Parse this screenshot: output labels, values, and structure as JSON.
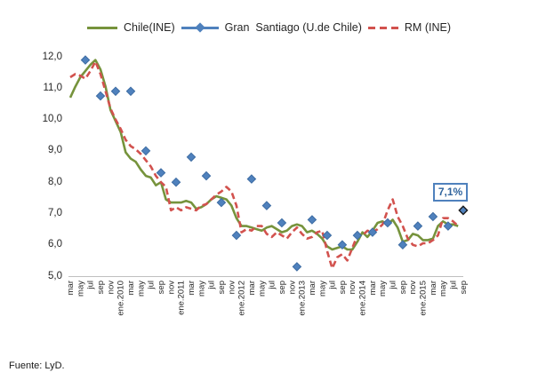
{
  "legend": {
    "items": [
      {
        "label": "Chile(INE)",
        "color": "#76933c",
        "style": "solid-line"
      },
      {
        "label": "Gran  Santiago (U.de Chile)",
        "color": "#4f81bd",
        "style": "line-with-diamond-marker"
      },
      {
        "label": "RM (INE)",
        "color": "#d2524e",
        "style": "dashed-line"
      }
    ]
  },
  "annotation": {
    "label": "7,1%",
    "value": 7.1,
    "applies_to": "Gran Santiago (U.de Chile) sep.2015"
  },
  "source": "Fuente: LyD.",
  "chart_data": {
    "type": "line",
    "title": "",
    "xlabel": "",
    "ylabel": "",
    "ylim": [
      5,
      12
    ],
    "grid": false,
    "legend_position": "top-center",
    "x_start_month": "mar.2009",
    "x_end_month": "sep.2015",
    "x_labels": [
      "mar",
      "may",
      "jul",
      "sep",
      "nov",
      "ene.2010",
      "mar",
      "may",
      "jul",
      "sep",
      "nov",
      "ene.2011",
      "mar",
      "may",
      "jul",
      "sep",
      "nov",
      "ene.2012",
      "mar",
      "may",
      "jul",
      "sep",
      "nov",
      "ene.2013",
      "mar",
      "may",
      "jul",
      "sep",
      "nov",
      "ene.2014",
      "mar",
      "may",
      "jul",
      "sep",
      "nov",
      "ene.2015",
      "mar",
      "may",
      "jul",
      "sep"
    ],
    "y_tick_labels": [
      "12,0",
      "11,0",
      "10,0",
      "9,0",
      "8,0",
      "7,0",
      "6,0",
      "5,0"
    ],
    "y_tick_values": [
      12,
      11,
      10,
      9,
      8,
      7,
      6,
      5
    ],
    "series": [
      {
        "name": "Chile(INE)",
        "color": "#76933c",
        "dash": false,
        "marker": "none",
        "frequency": "monthly",
        "first_month_index": 0,
        "values": [
          10.7,
          11.05,
          11.35,
          11.55,
          11.75,
          11.9,
          11.6,
          11.05,
          10.3,
          9.95,
          9.6,
          8.95,
          8.75,
          8.65,
          8.4,
          8.2,
          8.15,
          7.9,
          8.0,
          7.45,
          7.35,
          7.35,
          7.35,
          7.4,
          7.35,
          7.15,
          7.2,
          7.3,
          7.45,
          7.55,
          7.5,
          7.45,
          7.25,
          6.85,
          6.6,
          6.6,
          6.55,
          6.5,
          6.45,
          6.55,
          6.6,
          6.5,
          6.4,
          6.45,
          6.6,
          6.65,
          6.6,
          6.4,
          6.45,
          6.35,
          6.2,
          5.95,
          5.85,
          5.9,
          5.95,
          5.85,
          5.85,
          6.1,
          6.4,
          6.25,
          6.45,
          6.7,
          6.75,
          6.65,
          6.8,
          6.55,
          6.1,
          6.15,
          6.35,
          6.3,
          6.15,
          6.15,
          6.2,
          6.6,
          6.75,
          6.65,
          6.65,
          6.6
        ]
      },
      {
        "name": "Gran  Santiago (U.de Chile)",
        "color": "#4f81bd",
        "dash": false,
        "marker": "diamond",
        "frequency": "quarterly",
        "first_month_index": 3,
        "month_step": 3,
        "quarters": [
          "jun.2009",
          "sep.2009",
          "dic.2009",
          "mar.2010",
          "jun.2010",
          "sep.2010",
          "dic.2010",
          "mar.2011",
          "jun.2011",
          "sep.2011",
          "dic.2011",
          "mar.2012",
          "jun.2012",
          "sep.2012",
          "dic.2012",
          "mar.2013",
          "jun.2013",
          "sep.2013",
          "dic.2013",
          "mar.2014",
          "jun.2014",
          "sep.2014",
          "dic.2014",
          "mar.2015",
          "jun.2015",
          "sep.2015"
        ],
        "values": [
          11.9,
          10.75,
          10.9,
          10.9,
          9.0,
          8.3,
          8.0,
          8.8,
          8.2,
          7.35,
          6.3,
          8.1,
          7.25,
          6.7,
          5.3,
          6.8,
          6.3,
          6.0,
          6.3,
          6.4,
          6.7,
          6.0,
          6.6,
          6.9,
          6.6,
          7.1
        ],
        "highlight_last_point": true
      },
      {
        "name": "RM (INE)",
        "color": "#d2524e",
        "dash": true,
        "marker": "none",
        "frequency": "monthly",
        "first_month_index": 0,
        "values": [
          11.35,
          11.45,
          11.4,
          11.3,
          11.55,
          11.85,
          11.45,
          10.9,
          10.35,
          10.0,
          9.7,
          9.35,
          9.15,
          9.05,
          8.9,
          8.7,
          8.5,
          8.2,
          8.0,
          7.85,
          7.1,
          7.2,
          7.1,
          7.2,
          7.15,
          7.1,
          7.25,
          7.3,
          7.45,
          7.6,
          7.7,
          7.85,
          7.7,
          7.25,
          6.4,
          6.5,
          6.45,
          6.6,
          6.6,
          6.35,
          6.25,
          6.4,
          6.3,
          6.2,
          6.4,
          6.55,
          6.35,
          6.2,
          6.25,
          6.4,
          6.45,
          5.8,
          5.25,
          5.6,
          5.7,
          5.5,
          5.9,
          6.3,
          6.3,
          6.45,
          6.4,
          6.5,
          6.65,
          7.1,
          7.45,
          6.9,
          6.6,
          6.2,
          6.0,
          5.95,
          6.05,
          6.05,
          6.15,
          6.3,
          6.85,
          6.85,
          6.75,
          6.6
        ]
      }
    ],
    "annotation": {
      "label": "7,1%",
      "series_index": 1,
      "point_index": 25
    }
  }
}
